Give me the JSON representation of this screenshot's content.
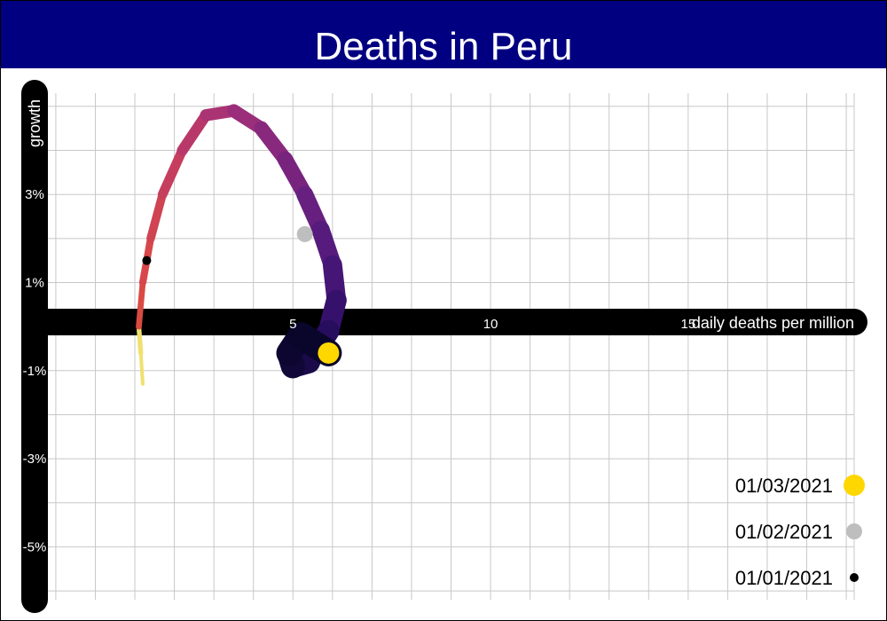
{
  "title": "Deaths in Peru",
  "colors": {
    "header_bg": "#000080",
    "axis": "#000000",
    "grid": "#c8c8c8",
    "marker_latest": "#ffd700",
    "marker_mid": "#bebebe",
    "marker_first": "#000000"
  },
  "chart_data": {
    "type": "line",
    "title": "Deaths in Peru",
    "xlabel": "daily deaths per million",
    "ylabel": "growth",
    "xlim": [
      -1.2,
      19.2
    ],
    "ylim": [
      -6.2,
      5.3
    ],
    "x_ticks": [
      5,
      10,
      15
    ],
    "x_tick_labels": [
      "5",
      "10",
      "15"
    ],
    "y_ticks": [
      3,
      1,
      -1,
      -3,
      -5
    ],
    "y_tick_labels": [
      "3%",
      "1%",
      "-1%",
      "-3%",
      "-5%"
    ],
    "grid": true,
    "legend_position": "bottom-right",
    "series": [
      {
        "x": [
          1.2,
          1.15,
          1.1,
          1.2,
          1.4,
          1.7,
          2.2,
          2.8,
          3.5,
          4.2,
          4.8,
          5.3,
          5.7,
          6.0,
          6.1,
          5.9,
          5.4,
          5.0,
          4.9,
          5.2,
          5.9
        ],
        "y": [
          -1.3,
          -0.6,
          0.0,
          1.0,
          2.0,
          3.0,
          4.0,
          4.8,
          4.9,
          4.5,
          3.8,
          3.0,
          2.2,
          1.4,
          0.6,
          -0.1,
          -0.8,
          -0.9,
          -0.6,
          -0.2,
          -0.6
        ]
      }
    ],
    "markers": [
      {
        "label": "01/01/2021",
        "x": 1.3,
        "y": 1.5
      },
      {
        "label": "01/02/2021",
        "x": 5.3,
        "y": 2.1
      },
      {
        "label": "01/03/2021",
        "x": 5.9,
        "y": -0.6
      }
    ]
  },
  "legend": [
    {
      "label": "01/03/2021"
    },
    {
      "label": "01/02/2021"
    },
    {
      "label": "01/01/2021"
    }
  ]
}
